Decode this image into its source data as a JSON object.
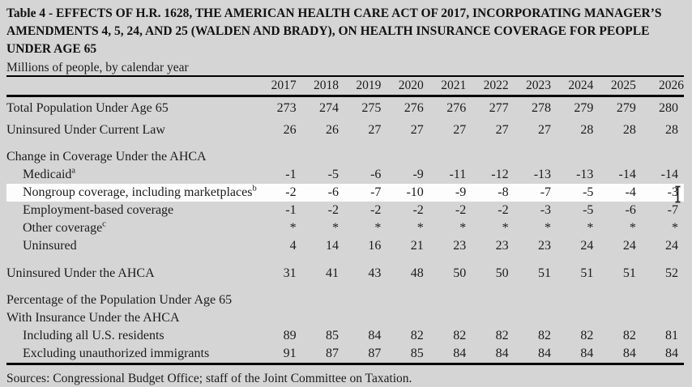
{
  "page": {
    "background_color": "#d5d5d5",
    "highlight_row_color": "#fdfdfd",
    "rule_color": "#000000"
  },
  "header": {
    "title_lines": [
      "Table 4 - EFFECTS OF H.R. 1628, THE AMERICAN HEALTH CARE ACT OF 2017, INCORPORATING MANAGER’S",
      "AMENDMENTS 4, 5, 24, AND 25 (WALDEN AND BRADY), ON HEALTH INSURANCE COVERAGE FOR PEOPLE",
      "UNDER AGE 65"
    ],
    "subtitle": "Millions of people, by calendar year"
  },
  "table": {
    "year_columns": [
      "2017",
      "2018",
      "2019",
      "2020",
      "2021",
      "2022",
      "2023",
      "2024",
      "2025",
      "2026"
    ],
    "rows": [
      {
        "kind": "data",
        "label": "Total Population Under Age 65",
        "indent": false,
        "highlight": false,
        "values": [
          "273",
          "274",
          "275",
          "276",
          "276",
          "277",
          "278",
          "279",
          "279",
          "280"
        ]
      },
      {
        "kind": "data",
        "label": "Uninsured Under Current Law",
        "indent": false,
        "highlight": false,
        "values": [
          "26",
          "26",
          "27",
          "27",
          "27",
          "27",
          "27",
          "28",
          "28",
          "28"
        ]
      },
      {
        "kind": "section",
        "label": "Change in Coverage Under the AHCA",
        "gap": "sm"
      },
      {
        "kind": "data",
        "label": "Medicaid",
        "sup": "a",
        "indent": true,
        "highlight": false,
        "values": [
          "-1",
          "-5",
          "-6",
          "-9",
          "-11",
          "-12",
          "-13",
          "-13",
          "-14",
          "-14"
        ]
      },
      {
        "kind": "data",
        "label": "Nongroup coverage, including marketplaces",
        "sup": "b",
        "indent": true,
        "highlight": true,
        "values": [
          "-2",
          "-6",
          "-7",
          "-10",
          "-9",
          "-8",
          "-7",
          "-5",
          "-4",
          "-3"
        ]
      },
      {
        "kind": "data",
        "label": "Employment-based coverage",
        "indent": true,
        "highlight": false,
        "values": [
          "-1",
          "-2",
          "-2",
          "-2",
          "-2",
          "-2",
          "-3",
          "-5",
          "-6",
          "-7"
        ]
      },
      {
        "kind": "data",
        "label": "Other coverage",
        "sup": "c",
        "indent": true,
        "highlight": false,
        "values": [
          "*",
          "*",
          "*",
          "*",
          "*",
          "*",
          "*",
          "*",
          "*",
          "*"
        ]
      },
      {
        "kind": "data",
        "label": "Uninsured",
        "indent": true,
        "highlight": false,
        "values": [
          "4",
          "14",
          "16",
          "21",
          "23",
          "23",
          "23",
          "24",
          "24",
          "24"
        ]
      },
      {
        "kind": "data",
        "label": "Uninsured Under the AHCA",
        "indent": false,
        "highlight": false,
        "gap": "lg",
        "values": [
          "31",
          "41",
          "43",
          "48",
          "50",
          "50",
          "51",
          "51",
          "51",
          "52"
        ]
      },
      {
        "kind": "section",
        "label": "Percentage of the Population Under Age 65",
        "gap": "sm"
      },
      {
        "kind": "section",
        "label": "With Insurance Under the AHCA"
      },
      {
        "kind": "data",
        "label": "Including all U.S. residents",
        "indent": true,
        "highlight": false,
        "values": [
          "89",
          "85",
          "84",
          "82",
          "82",
          "82",
          "82",
          "82",
          "82",
          "81"
        ]
      },
      {
        "kind": "data",
        "label": "Excluding unauthorized immigrants",
        "indent": true,
        "highlight": false,
        "values": [
          "91",
          "87",
          "87",
          "85",
          "84",
          "84",
          "84",
          "84",
          "84",
          "84"
        ]
      }
    ]
  },
  "footer": {
    "sources": "Sources: Congressional Budget Office; staff of the Joint Committee on Taxation."
  },
  "cursor": {
    "icon": "text-ibeam-cursor"
  }
}
